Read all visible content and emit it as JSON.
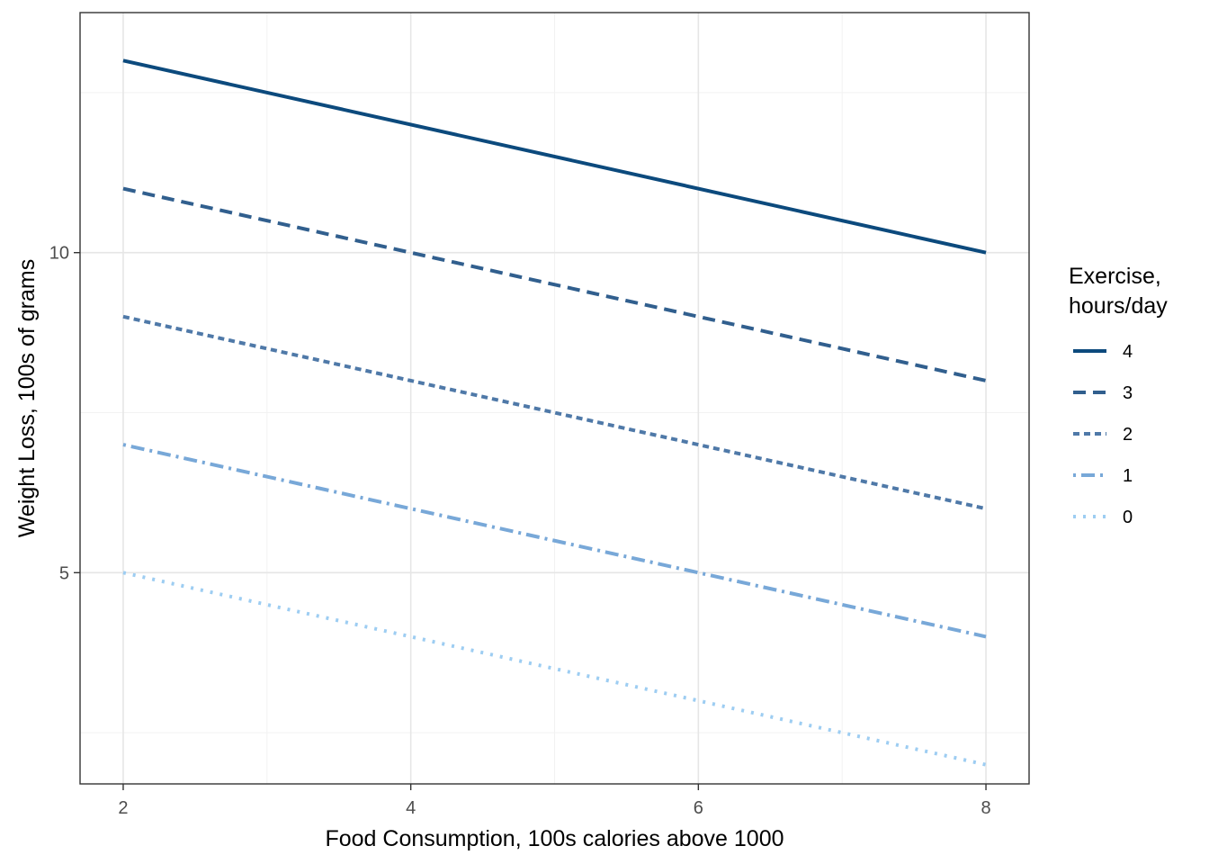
{
  "chart_data": {
    "type": "line",
    "title": "",
    "xlabel": "Food Consumption, 100s calories above 1000",
    "ylabel": "Weight Loss, 100s of grams",
    "xlim": [
      1.7,
      8.3
    ],
    "ylim": [
      1.7,
      13.75
    ],
    "x_ticks": [
      2,
      4,
      6,
      8
    ],
    "y_ticks": [
      5,
      10
    ],
    "x_tick_labels": [
      "2",
      "4",
      "6",
      "8"
    ],
    "y_tick_labels": [
      "5",
      "10"
    ],
    "grid": true,
    "legend": {
      "placement": "right",
      "title_lines": [
        "Exercise,",
        "hours/day"
      ]
    },
    "x": [
      2,
      8
    ],
    "series": [
      {
        "name": "4",
        "values": [
          13,
          10
        ],
        "color": "#0c4a7d",
        "linetype": "solid"
      },
      {
        "name": "3",
        "values": [
          11,
          8
        ],
        "color": "#315f8e",
        "linetype": "dashed"
      },
      {
        "name": "2",
        "values": [
          9,
          6
        ],
        "color": "#4f79a8",
        "linetype": "dotted-dash"
      },
      {
        "name": "1",
        "values": [
          7,
          4
        ],
        "color": "#78a8d8",
        "linetype": "dotdash"
      },
      {
        "name": "0",
        "values": [
          5,
          2
        ],
        "color": "#9dcdf2",
        "linetype": "dotted"
      }
    ]
  }
}
